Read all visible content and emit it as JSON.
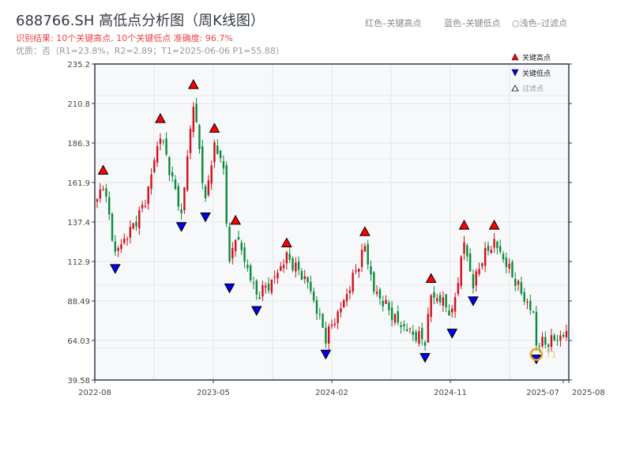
{
  "title": "688766.SH 高低点分析图（周K线图）",
  "result_text": "识别结果: 10个关键高点, 10个关键低点   准确度: 96.7%",
  "quality_text": "优质：否（R1=23.8%，R2=2.89；T1=2025-06-06 P1=55.88）",
  "top_legend": [
    "红色–关键高点",
    "蓝色–关键低点",
    "○浅色–过滤点"
  ],
  "chart_data": {
    "type": "candlestick",
    "title": "688766.SH 高低点分析图（周K线图）",
    "ylim": [
      39.58,
      235.2
    ],
    "y_ticks": [
      "235.2",
      "210.8",
      "186.3",
      "161.9",
      "137.4",
      "112.9",
      "88.49",
      "64.03",
      "39.58"
    ],
    "x_ticks": [
      {
        "label": "2022-08",
        "week": 0
      },
      {
        "label": "2023-05",
        "week": 39
      },
      {
        "label": "2024-02",
        "week": 78
      },
      {
        "label": "2024-11",
        "week": 117
      },
      {
        "label": "2025-07",
        "week": 154
      },
      {
        "label": "2025-08",
        "week": 156
      }
    ],
    "weeks": 156,
    "price_path": [
      [
        0,
        150
      ],
      [
        2,
        162
      ],
      [
        6,
        118
      ],
      [
        12,
        135
      ],
      [
        16,
        150
      ],
      [
        21,
        192
      ],
      [
        28,
        142
      ],
      [
        32,
        212
      ],
      [
        36,
        150
      ],
      [
        39,
        186
      ],
      [
        42,
        170
      ],
      [
        44,
        110
      ],
      [
        46,
        130
      ],
      [
        53,
        92
      ],
      [
        58,
        100
      ],
      [
        63,
        116
      ],
      [
        70,
        100
      ],
      [
        76,
        66
      ],
      [
        82,
        88
      ],
      [
        89,
        122
      ],
      [
        92,
        95
      ],
      [
        95,
        88
      ],
      [
        100,
        75
      ],
      [
        105,
        68
      ],
      [
        109,
        64
      ],
      [
        111,
        92
      ],
      [
        115,
        88
      ],
      [
        118,
        80
      ],
      [
        122,
        125
      ],
      [
        125,
        98
      ],
      [
        128,
        115
      ],
      [
        132,
        125
      ],
      [
        137,
        108
      ],
      [
        142,
        90
      ],
      [
        145,
        80
      ],
      [
        146,
        62
      ],
      [
        150,
        63
      ],
      [
        156,
        68
      ]
    ],
    "key_highs": [
      [
        2,
        165
      ],
      [
        21,
        197
      ],
      [
        32,
        218
      ],
      [
        39,
        191
      ],
      [
        46,
        134
      ],
      [
        63,
        120
      ],
      [
        89,
        127
      ],
      [
        111,
        98
      ],
      [
        122,
        131
      ],
      [
        132,
        131
      ]
    ],
    "key_lows": [
      [
        6,
        113
      ],
      [
        28,
        139
      ],
      [
        36,
        145
      ],
      [
        44,
        101
      ],
      [
        53,
        87
      ],
      [
        76,
        60
      ],
      [
        109,
        58
      ],
      [
        118,
        73
      ],
      [
        125,
        93
      ],
      [
        146,
        57
      ]
    ],
    "t1": {
      "label": "T1",
      "week": 146,
      "price": 55.88
    },
    "legend": [
      "关键高点",
      "关键低点",
      "过滤点"
    ],
    "colors": {
      "up": "#d0101a",
      "down": "#0a8a3a",
      "high": "#ff0000",
      "low": "#0000ee",
      "t1": "#f0a020"
    }
  }
}
